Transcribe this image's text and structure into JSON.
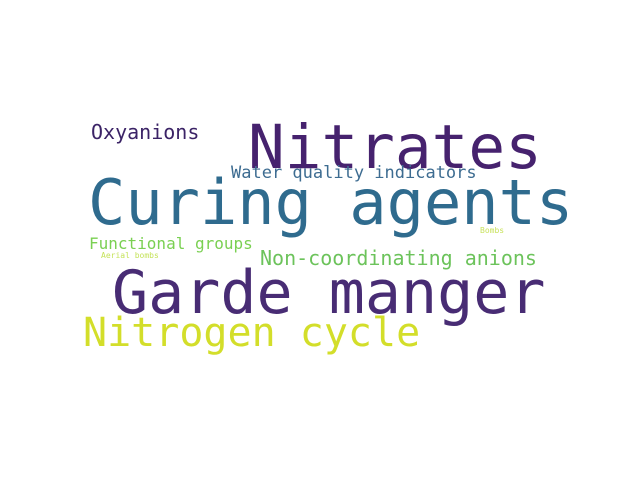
{
  "cloud": {
    "words": [
      {
        "text": "Nitrates",
        "color": "#46226e"
      },
      {
        "text": "Curing agents",
        "color": "#2f6b8e"
      },
      {
        "text": "Garde manger",
        "color": "#482c74"
      },
      {
        "text": "Nitrogen cycle",
        "color": "#d3de2a"
      },
      {
        "text": "Oxyanions",
        "color": "#3b2366"
      },
      {
        "text": "Water quality indicators",
        "color": "#3d6c91"
      },
      {
        "text": "Non-coordinating anions",
        "color": "#6cc35b"
      },
      {
        "text": "Functional groups",
        "color": "#7ad052"
      },
      {
        "text": "Aerial bombs",
        "color": "#c5e35a"
      },
      {
        "text": "Bombs",
        "color": "#c9e25c"
      }
    ]
  }
}
